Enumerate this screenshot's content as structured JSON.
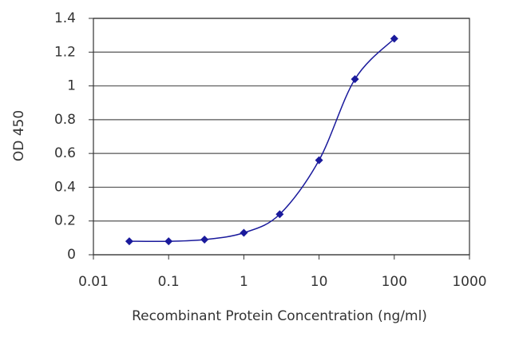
{
  "chart_data": {
    "type": "line",
    "x_label": "Recombinant Protein Concentration (ng/ml)",
    "y_label": "OD 450",
    "x": [
      0.03,
      0.1,
      0.3,
      1,
      3,
      10,
      30,
      100
    ],
    "values": [
      0.08,
      0.08,
      0.09,
      0.13,
      0.24,
      0.56,
      1.04,
      1.28
    ],
    "color": "#1a1a9c",
    "x_log": true,
    "xlim": [
      0.01,
      1000
    ],
    "xticks": [
      0.01,
      0.1,
      1,
      10,
      100,
      1000
    ],
    "ylim": [
      0,
      1.4
    ],
    "yticks": [
      0,
      0.2,
      0.4,
      0.6,
      0.8,
      1,
      1.2,
      1.4
    ],
    "grid": true
  }
}
